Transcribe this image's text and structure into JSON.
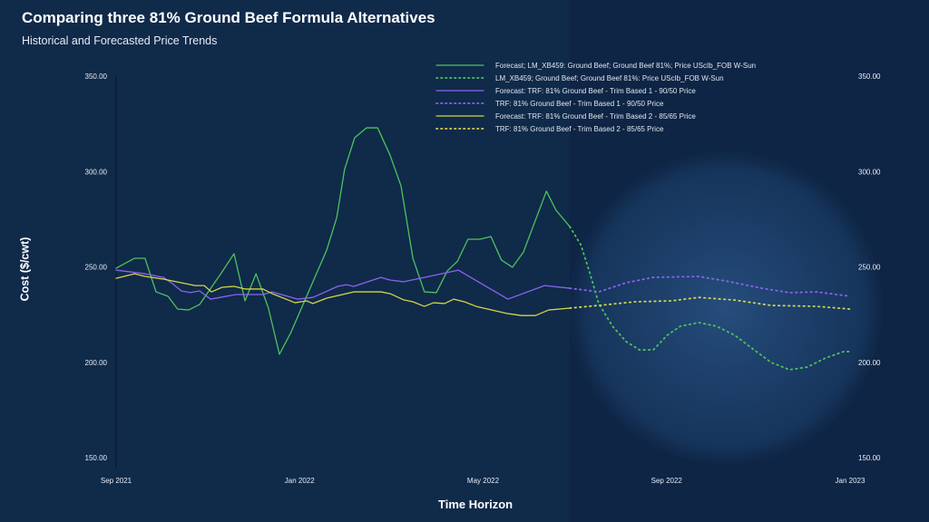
{
  "header": {
    "title": "Comparing three 81% Ground Beef Formula Alternatives",
    "subtitle": "Historical and Forecasted Price Trends"
  },
  "chart_data": {
    "type": "line",
    "title": "Comparing three 81% Ground Beef Formula Alternatives",
    "subtitle": "Historical and Forecasted Price Trends",
    "xlabel": "Time Horizon",
    "ylabel": "Cost ($/cwt)",
    "x_unit": "months since Sep 2021",
    "xlim": [
      0,
      16
    ],
    "ylim": [
      150,
      350
    ],
    "x_ticks": [
      {
        "x": 0,
        "label": "Sep 2021"
      },
      {
        "x": 4,
        "label": "Jan 2022"
      },
      {
        "x": 8,
        "label": "May 2022"
      },
      {
        "x": 12,
        "label": "Sep 2022"
      },
      {
        "x": 16,
        "label": "Jan 2023"
      }
    ],
    "y_ticks": [
      {
        "y": 350,
        "label": "350.00"
      },
      {
        "y": 300,
        "label": "300.00"
      },
      {
        "y": 250,
        "label": "250.00"
      },
      {
        "y": 200,
        "label": "200.00"
      },
      {
        "y": 150,
        "label": "150.00"
      }
    ],
    "forecast_start": 9.89,
    "legend_position": "top-right",
    "series": [
      {
        "name": "Forecast; LM_XB459: Ground Beef; Ground Beef 81%; Price UScIb_FOB W-Sun",
        "color": "#4cc35a",
        "style": "solid",
        "points": [
          [
            0,
            249.3
          ],
          [
            0.4,
            254.5
          ],
          [
            0.63,
            254.5
          ],
          [
            0.87,
            236.9
          ],
          [
            1.13,
            234.6
          ],
          [
            1.34,
            227.9
          ],
          [
            1.58,
            227.4
          ],
          [
            1.82,
            230.3
          ],
          [
            2.31,
            247.4
          ],
          [
            2.57,
            256.9
          ],
          [
            2.81,
            232.2
          ],
          [
            3.05,
            246.4
          ],
          [
            3.32,
            228.4
          ],
          [
            3.56,
            204.2
          ],
          [
            3.8,
            215.1
          ],
          [
            4.59,
            258.8
          ],
          [
            4.81,
            275.9
          ],
          [
            4.98,
            301.1
          ],
          [
            5.2,
            317.7
          ],
          [
            5.46,
            322.9
          ],
          [
            5.7,
            322.9
          ],
          [
            5.97,
            308.7
          ],
          [
            6.21,
            292.5
          ],
          [
            6.47,
            254.5
          ],
          [
            6.72,
            236.9
          ],
          [
            6.98,
            236.5
          ],
          [
            7.22,
            247.9
          ],
          [
            7.44,
            252.9
          ],
          [
            7.67,
            264.5
          ],
          [
            7.93,
            264.5
          ],
          [
            8.17,
            265.9
          ],
          [
            8.4,
            253.6
          ],
          [
            8.64,
            249.8
          ],
          [
            8.88,
            257.8
          ],
          [
            9.38,
            289.7
          ],
          [
            9.59,
            279.7
          ],
          [
            9.89,
            271.1
          ]
        ]
      },
      {
        "name": "LM_XB459; Ground Beef; Ground Beef 81%: Price UScIb_FOB W-Sun",
        "color": "#4cc35a",
        "style": "dotted",
        "points": [
          [
            9.89,
            271.1
          ],
          [
            10.13,
            261.6
          ],
          [
            10.32,
            247.4
          ],
          [
            10.52,
            230.8
          ],
          [
            10.82,
            218.9
          ],
          [
            11.12,
            210.8
          ],
          [
            11.41,
            206.5
          ],
          [
            11.71,
            206.5
          ],
          [
            12.01,
            214.1
          ],
          [
            12.3,
            218.9
          ],
          [
            12.7,
            220.8
          ],
          [
            13.09,
            218.9
          ],
          [
            13.49,
            214.1
          ],
          [
            13.88,
            207
          ],
          [
            14.28,
            199.9
          ],
          [
            14.68,
            196.1
          ],
          [
            15.07,
            197.5
          ],
          [
            15.47,
            202.3
          ],
          [
            15.86,
            205.6
          ],
          [
            16,
            205.6
          ]
        ]
      },
      {
        "name": "Forecast: TRF: 81% Ground Beef - Trim Based 1 - 90/50 Price",
        "color": "#8a63f0",
        "style": "solid",
        "points": [
          [
            0,
            248.3
          ],
          [
            0.63,
            246.4
          ],
          [
            1.03,
            244.5
          ],
          [
            1.23,
            241.2
          ],
          [
            1.42,
            237.4
          ],
          [
            1.62,
            236.5
          ],
          [
            1.82,
            237.4
          ],
          [
            2.06,
            233.1
          ],
          [
            2.61,
            235.5
          ],
          [
            3.2,
            235.5
          ],
          [
            3.4,
            236.9
          ],
          [
            3.96,
            233.1
          ],
          [
            4.29,
            234
          ],
          [
            4.83,
            239.8
          ],
          [
            5.02,
            240.7
          ],
          [
            5.18,
            239.8
          ],
          [
            5.77,
            244.5
          ],
          [
            5.97,
            243.1
          ],
          [
            6.27,
            242.2
          ],
          [
            6.72,
            244.5
          ],
          [
            7.46,
            248.3
          ],
          [
            8.54,
            233.1
          ],
          [
            9.34,
            240.2
          ],
          [
            9.89,
            238.8
          ]
        ]
      },
      {
        "name": "TRF: 81% Ground Beef - Trim Based 1 - 90/50 Price",
        "color": "#8a63f0",
        "style": "dotted",
        "points": [
          [
            9.89,
            238.8
          ],
          [
            10.52,
            236.9
          ],
          [
            11.12,
            241.7
          ],
          [
            11.71,
            244.5
          ],
          [
            12.7,
            245
          ],
          [
            13.29,
            242.6
          ],
          [
            14.08,
            238.8
          ],
          [
            14.68,
            236.5
          ],
          [
            15.27,
            236.9
          ],
          [
            16,
            234.6
          ]
        ]
      },
      {
        "name": "Forecast: TRF: 81% Ground Beef - Trim Based 2 - 85/65 Price",
        "color": "#d4d447",
        "style": "solid",
        "points": [
          [
            0,
            244
          ],
          [
            0.4,
            246.4
          ],
          [
            0.63,
            245
          ],
          [
            1.03,
            243.6
          ],
          [
            1.42,
            241.7
          ],
          [
            1.72,
            240.2
          ],
          [
            1.92,
            240.2
          ],
          [
            2.08,
            236.9
          ],
          [
            2.31,
            239.3
          ],
          [
            2.57,
            239.8
          ],
          [
            2.81,
            238.4
          ],
          [
            3.2,
            238.4
          ],
          [
            3.4,
            236
          ],
          [
            3.9,
            231.2
          ],
          [
            4.15,
            232.2
          ],
          [
            4.29,
            230.8
          ],
          [
            4.59,
            233.6
          ],
          [
            5.18,
            236.9
          ],
          [
            5.77,
            236.9
          ],
          [
            5.97,
            236
          ],
          [
            6.27,
            232.7
          ],
          [
            6.47,
            231.7
          ],
          [
            6.72,
            229.3
          ],
          [
            6.92,
            231.2
          ],
          [
            7.16,
            230.8
          ],
          [
            7.36,
            233.1
          ],
          [
            7.59,
            231.7
          ],
          [
            7.85,
            229.3
          ],
          [
            8.54,
            225.5
          ],
          [
            8.84,
            224.5
          ],
          [
            9.14,
            224.5
          ],
          [
            9.43,
            227.4
          ],
          [
            9.89,
            228.4
          ]
        ]
      },
      {
        "name": "TRF: 81% Ground Beef - Trim Based 2 - 85/65 Price",
        "color": "#d4d447",
        "style": "dotted",
        "points": [
          [
            9.89,
            228.4
          ],
          [
            10.52,
            229.8
          ],
          [
            11.31,
            231.7
          ],
          [
            12.1,
            232.2
          ],
          [
            12.7,
            234
          ],
          [
            13.49,
            232.6
          ],
          [
            14.28,
            229.8
          ],
          [
            15.27,
            229.3
          ],
          [
            16,
            227.9
          ]
        ]
      }
    ]
  }
}
